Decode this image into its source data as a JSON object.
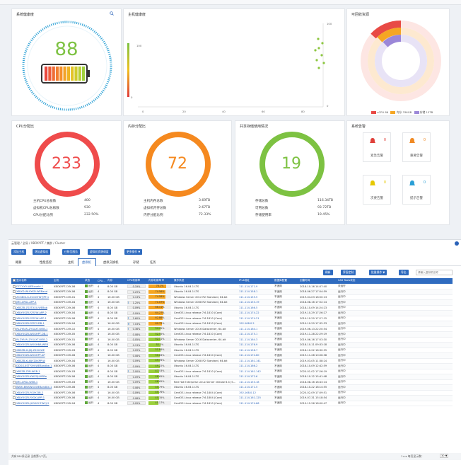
{
  "health": {
    "title": "系统健康度",
    "score": "88"
  },
  "host_health": {
    "title": "主机健康度",
    "xticks": [
      "0",
      "20",
      "40",
      "60",
      "80"
    ],
    "left_top": "100",
    "left_bottom": "0",
    "right_top": "100",
    "right_bottom": "0"
  },
  "resources": {
    "title": "可回收资源",
    "legend": [
      "vCPU 86",
      "内存 336GB",
      "存储 15TB"
    ]
  },
  "cpu_alloc": {
    "title": "CPU分配比",
    "value": "233",
    "rows": [
      {
        "k": "主机CPU总核数",
        "v": "400"
      },
      {
        "k": "虚拟机CPU总核数",
        "v": "930"
      },
      {
        "k": "CPU分配比例",
        "v": "232.50%"
      }
    ]
  },
  "mem_alloc": {
    "title": "内存分配比",
    "value": "72",
    "rows": [
      {
        "k": "主机内存总数",
        "v": "3.69TB"
      },
      {
        "k": "虚拟机内存总数",
        "v": "2.67TB"
      },
      {
        "k": "内存分配比例",
        "v": "72.33%"
      }
    ]
  },
  "storage": {
    "title": "共享存储使用情况",
    "value": "19",
    "rows": [
      {
        "k": "存储总数",
        "v": "116.34TB"
      },
      {
        "k": "可用总数",
        "v": "93.72TB"
      },
      {
        "k": "存储使用率",
        "v": "19.45%"
      }
    ]
  },
  "alerts": {
    "title": "系统告警",
    "items": [
      {
        "label": "紧急告警",
        "count": "0",
        "color": "#e0403a"
      },
      {
        "label": "重要告警",
        "count": "0",
        "color": "#f08a24"
      },
      {
        "label": "次要告警",
        "count": "0",
        "color": "#e6c800"
      },
      {
        "label": "提示告警",
        "count": "0",
        "color": "#2a9fd6"
      }
    ]
  },
  "breadcrumb": "云管理 / 全局 / XBOXYPT / 集群 / Cluster",
  "toolbar": [
    "添加主机",
    "增加虚拟机",
    "迁移至服务",
    "虚拟机资源调度",
    "更多操作 ▼"
  ],
  "tabs": [
    "概要",
    "性能监控",
    "主机",
    "虚拟机",
    "虚拟交换机",
    "存储",
    "任务"
  ],
  "actions": {
    "refresh": "刷新",
    "display": "界面定制",
    "batch": "批量操作 ▼",
    "export": "导出",
    "search_placeholder": "请输入虚拟机名称"
  },
  "columns": [
    "显示名称",
    "主机",
    "状态",
    "CPU...",
    "内存",
    "CPU利用率",
    "内存利用率 ▼",
    "操作系统",
    "IPv4地址",
    "数据库配置",
    "创建时间",
    "CAS Tools状态"
  ],
  "rows": [
    [
      "FZ-TVYO-WEBxuebi-1",
      "XBOXYPT-CVK-06",
      "运行",
      "4",
      "8.00 GB",
      "0.19%",
      "78.1%",
      "Ubuntu 16.04.1 LTS",
      "111.114.171.9",
      "不适用",
      "2018-10-16 14:07:40",
      "未运行"
    ],
    [
      "XBLYD-WLKYKD-WEBand",
      "XBOXYPT-CVK-06",
      "运行",
      "4",
      "8.00 GB",
      "0.29%",
      "74.56%",
      "Ubuntu 16.04.1 LTS",
      "111.114.158.1",
      "不适用",
      "2018-06-27 17:54:59",
      "运行中"
    ],
    [
      "ZCGBGLG-ZCGGTWTJPT-1",
      "XBOXYPT-CVK-01",
      "运行",
      "4",
      "16.00 GB",
      "0.13%",
      "74.58%",
      "Windows Server 2012 R2 Standard, 64-bit",
      "111.114.155.5",
      "不适用",
      "2019-04-03 18:50:13",
      "运行中"
    ],
    [
      "JMC-XRSL-APP-1",
      "XBOXYPT-CVK-04",
      "运行",
      "8",
      "16.00 GB",
      "1.25%",
      "71.07%",
      "Windows Server 2008 R2 Standard, 64-bit",
      "111.114.153.19",
      "不适用",
      "2018-08-16 17:52:14",
      "运行中"
    ],
    [
      "XBSZB-ZSXTXXX-WEBab",
      "XBOXYPT-CVK-06",
      "运行",
      "4",
      "8.00 GB",
      "0.09%",
      "66.11%",
      "Ubuntu 16.04.1 LTS",
      "111.114.166.5",
      "不适用",
      "2018-10-09 14:24:23",
      "运行中"
    ],
    [
      "XBLYXSZK-YZSFW-APP-2",
      "XBOXYPT-CVK-04",
      "运行",
      "4",
      "8.00 GB",
      "0.09%",
      "64.27%",
      "CentOS Linux release 7.6.1810 (Core)",
      "111.114.174.22",
      "不适用",
      "2019-10-29 17:26:27",
      "运行中"
    ],
    [
      "XBLYXSZK-YZSFW-APP-1",
      "XBOXYPT-CVK-06",
      "运行",
      "4",
      "8.00 GB",
      "2.60%",
      "62.86%",
      "CentOS Linux release 7.6.1810 (Core)",
      "111.114.174.21",
      "不适用",
      "2019-10-29 17:27:15",
      "运行中"
    ],
    [
      "XBLYXSZK-YZSFY-DB-1",
      "XBOXYPT-CVK-04",
      "运行",
      "4",
      "16.00 GB",
      "7.03%",
      "60.75%",
      "CentOS Linux release 7.6.1810 (Core)",
      "192.168.0.2",
      "不适用",
      "2019-10-29 17:32:33",
      "运行中"
    ],
    [
      "RLZYB-RLZYGLXT-WEB-1",
      "XBOXYPT-CVK-10",
      "运行",
      "4",
      "16.00 GB",
      "0.36%",
      "54.45%",
      "Windows Server 2016 Datacenter, 64-bit",
      "111.114.164.1",
      "不适用",
      "2019-06-13 22:20:54",
      "运行中"
    ],
    [
      "XBLYXSZK-WXGHPT-DB-1",
      "XBOXYPT-CVK-05",
      "运行",
      "4",
      "16.00 GB",
      "0.08%",
      "52.55%",
      "CentOS Linux release 7.6.1810 (Core)",
      "111.114.175.1",
      "不适用",
      "2019-11-28 22:29:19",
      "运行中"
    ],
    [
      "RLZYB-RLZYGLXT-WEB-2",
      "XBOXYPT-CVK-01",
      "运行",
      "4",
      "16.00 GB",
      "0.05%",
      "52.11%",
      "Windows Server 2016 Datacenter, 64-bit",
      "111.114.164.3",
      "不适用",
      "2019-06-16 17:53:30",
      "运行中"
    ],
    [
      "XBLYXSZK-WXGHBA-WEB",
      "XBOXYPT-CVK-06",
      "运行",
      "4",
      "8.00 GB",
      "0.13%",
      "52.1%",
      "Ubuntu 16.04.1 LTS",
      "111.114.176.9",
      "不适用",
      "2018-10-11 09:33:18",
      "运行中"
    ],
    [
      "XBSZB-XLJKJ-ZXXX-WE",
      "XBOXYPT-CVK-03",
      "运行",
      "4",
      "8.00 GB",
      "0.09%",
      "51.84%",
      "Ubuntu 16.04.1 LTS",
      "111.114.158.7",
      "不适用",
      "2018-10-22 18:30:35",
      "运行中"
    ],
    [
      "XBLYXSZK-WXGHPT-AP",
      "XBOXYPT-CVK-06",
      "运行",
      "4",
      "16.00 GB",
      "0.08%",
      "50.28%",
      "CentOS Linux release 7.6.1810 (Core)",
      "111.114.174.60",
      "不适用",
      "2019-11-28 10:06:38",
      "运行中"
    ],
    [
      "XBSZB-XLJKJYZXXPP-W",
      "XBOXYPT-CVK-04",
      "运行",
      "4",
      "16.00 GB",
      "0.09%",
      "49.78%",
      "Windows Server 2008 R2 Standard, 64-bit",
      "111.114.161.141",
      "不适用",
      "2019-03-05 11:38:24",
      "运行中"
    ],
    [
      "DDGX-XSTYXH-WEBandbe-1",
      "XBOXYPT-CVK-06",
      "运行",
      "4",
      "8.00 GB",
      "0.09%",
      "49.22%",
      "Ubuntu 16.04.1 LTS",
      "111.114.166.2",
      "不适用",
      "2018-10-09 12:42:59",
      "运行中"
    ],
    [
      "XBSZB-ZYB-WEB-1",
      "XBOXYPT-CVK-03",
      "运行",
      "4",
      "8.00 GB",
      "2.00%",
      "47.53%",
      "CentOS Linux release 7.6.1810 (Core)",
      "111.114.161.142",
      "不适用",
      "2020-01-02 17:26:19",
      "运行中"
    ],
    [
      "XBLYXSZK-XWZGJ-WEBa",
      "XBOXYPT-CVK-06",
      "运行",
      "4",
      "8.00 GB",
      "0.09%",
      "46.65%",
      "Ubuntu 16.04.1 LTS",
      "111.114.172.6",
      "不适用",
      "2018-10-12 15:41:48",
      "运行中"
    ],
    [
      "JMC-XRSL-WEB-1",
      "XBOXYPT-CVK-03",
      "运行",
      "4",
      "16.00 GB",
      "0.09%",
      "46.65%",
      "Red Hat Enterprise Linux Server release 6.4 (S...",
      "111.114.153.18",
      "不适用",
      "2018-08-16 18:43:14",
      "运行中"
    ],
    [
      "BWXI-BWSWXI-WEBandbe-1",
      "XBOXYPT-CVK-06",
      "运行",
      "4",
      "8.00 GB",
      "0.08%",
      "45.79%",
      "Ubuntu 16.04.1 LTS",
      "111.114.171.5",
      "不适用",
      "2018-10-22 18:14:55",
      "运行中"
    ],
    [
      "XBLYXSZK-YGXY-DB-2",
      "XBOXYPT-CVK-06",
      "运行",
      "4",
      "16.00 GB",
      "0.09%",
      "45.76%",
      "CentOS Linux release 7.6.1804 (Core)",
      "192.168.0.12",
      "不适用",
      "2020-02-09 17:09:51",
      "运行中"
    ],
    [
      "XBLYXSZK-YXGX-APP-1",
      "XBOXYPT-CVK-06",
      "运行",
      "4",
      "16.00 GB",
      "0.08%",
      "45.35%",
      "CentOS Linux release 7.6.1804 (Core)",
      "111.114.161.125",
      "不适用",
      "2019-07-31 15:18:54",
      "运行中"
    ],
    [
      "XBLYXSZK-JXGKGY-FWCJ-2",
      "XBOXYPT-CVK-04",
      "运行",
      "4",
      "8.00 GB",
      "0.09%",
      "45.17%",
      "CentOS Linux release 7.6.1810 (Core)",
      "111.114.174.66",
      "不适用",
      "2019-12-26 18:00:47",
      "运行中"
    ]
  ],
  "footer": {
    "summary": "共有184条记录 当前第1/7页。",
    "pager": "1 ▸ ▸ 每页显示数：",
    "pagesize": "30 ▼"
  }
}
